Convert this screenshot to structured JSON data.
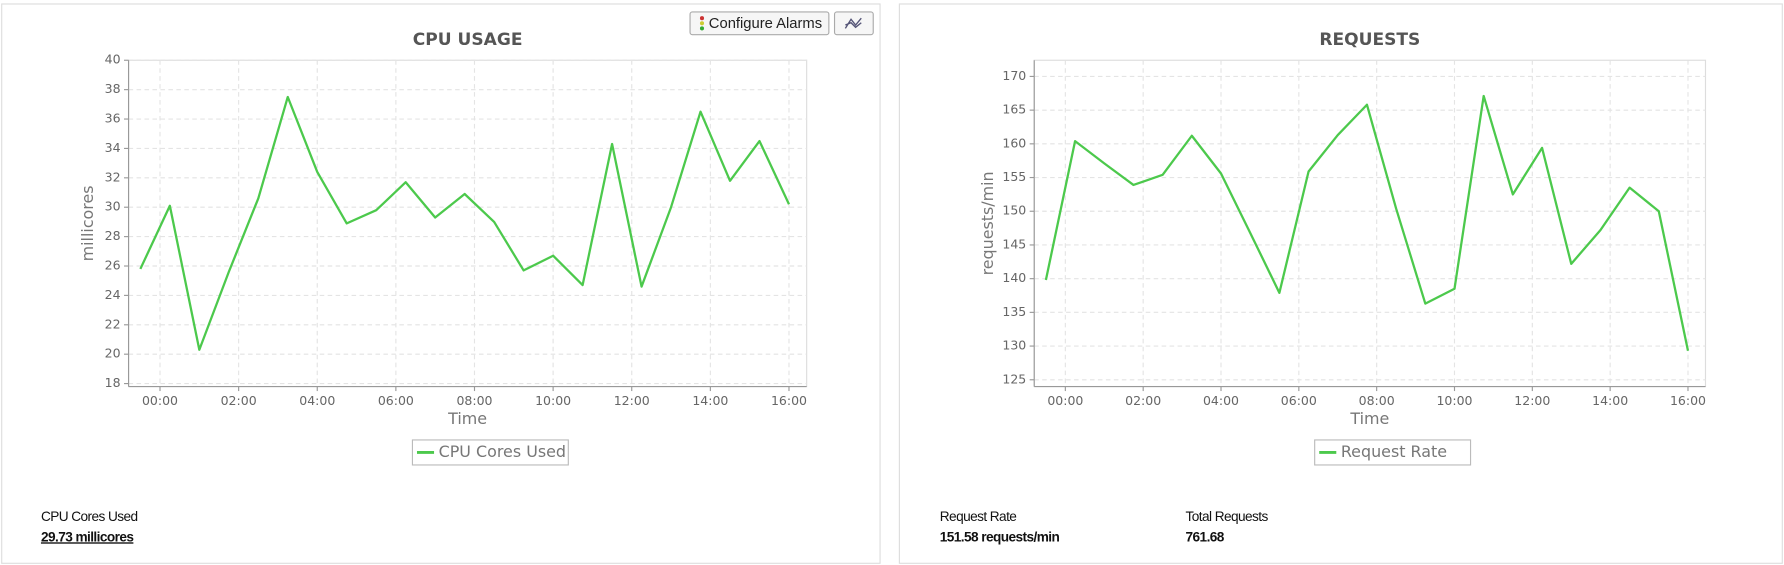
{
  "chart_data": [
    {
      "type": "line",
      "title": "CPU USAGE",
      "x_label": "Time",
      "y_label": "millicores",
      "x": [
        -0.5,
        0.25,
        1.0,
        1.75,
        2.5,
        3.25,
        4.0,
        4.75,
        5.5,
        6.25,
        7.0,
        7.75,
        8.5,
        9.25,
        10.0,
        10.75,
        11.5,
        12.25,
        13.0,
        13.75,
        14.5,
        15.25,
        16.0
      ],
      "series": [
        {
          "name": "CPU Cores Used",
          "color": "#4cc94c",
          "values": [
            25.8,
            30.1,
            20.3,
            25.6,
            30.6,
            37.5,
            32.4,
            28.9,
            29.8,
            31.7,
            29.3,
            30.9,
            29.0,
            25.7,
            26.7,
            24.7,
            34.3,
            24.6,
            30.0,
            36.5,
            31.8,
            34.5,
            30.2
          ]
        }
      ],
      "xlim": [
        -0.8,
        16.45
      ],
      "ylim": [
        17.8,
        40
      ],
      "xticks": [
        {
          "value": 0,
          "label": "00:00"
        },
        {
          "value": 2,
          "label": "02:00"
        },
        {
          "value": 4,
          "label": "04:00"
        },
        {
          "value": 6,
          "label": "06:00"
        },
        {
          "value": 8,
          "label": "08:00"
        },
        {
          "value": 10,
          "label": "10:00"
        },
        {
          "value": 12,
          "label": "12:00"
        },
        {
          "value": 14,
          "label": "14:00"
        },
        {
          "value": 16,
          "label": "16:00"
        }
      ],
      "yticks": [
        18,
        20,
        22,
        24,
        26,
        28,
        30,
        32,
        34,
        36,
        38,
        40
      ],
      "grid": true
    },
    {
      "type": "line",
      "title": "REQUESTS",
      "x_label": "Time",
      "y_label": "requests/min",
      "x": [
        -0.5,
        0.25,
        1.0,
        1.75,
        2.5,
        3.25,
        4.0,
        4.75,
        5.5,
        6.25,
        7.0,
        7.75,
        8.5,
        9.25,
        10.0,
        10.75,
        11.5,
        12.25,
        13.0,
        13.75,
        14.5,
        15.25,
        16.0
      ],
      "series": [
        {
          "name": "Request Rate",
          "color": "#4cc94c",
          "values": [
            139.8,
            160.4,
            157.1,
            153.9,
            155.4,
            161.2,
            155.6,
            146.8,
            137.9,
            155.9,
            161.3,
            165.8,
            150.4,
            136.3,
            138.5,
            167.1,
            152.5,
            159.4,
            142.2,
            147.2,
            153.5,
            150.0,
            129.3
          ]
        }
      ],
      "xlim": [
        -0.8,
        16.45
      ],
      "ylim": [
        124,
        172.4
      ],
      "xticks": [
        {
          "value": 0,
          "label": "00:00"
        },
        {
          "value": 2,
          "label": "02:00"
        },
        {
          "value": 4,
          "label": "04:00"
        },
        {
          "value": 6,
          "label": "06:00"
        },
        {
          "value": 8,
          "label": "08:00"
        },
        {
          "value": 10,
          "label": "10:00"
        },
        {
          "value": 12,
          "label": "12:00"
        },
        {
          "value": 14,
          "label": "14:00"
        },
        {
          "value": 16,
          "label": "16:00"
        }
      ],
      "yticks": [
        125,
        130,
        135,
        140,
        145,
        150,
        155,
        160,
        165,
        170
      ],
      "grid": true
    }
  ],
  "buttons": [
    "Configure Alarms"
  ],
  "stats": [
    {
      "label": "CPU Cores Used",
      "value": "29.73 millicores"
    },
    {
      "label": "Request Rate",
      "value": "151.58 requests/min"
    },
    {
      "label": "Total Requests",
      "value": "761.68"
    }
  ]
}
